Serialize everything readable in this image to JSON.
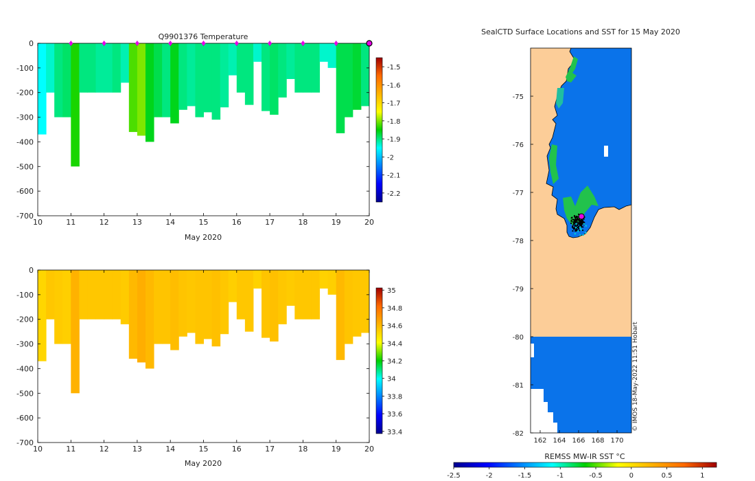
{
  "chart_data": [
    {
      "type": "heatmap",
      "title": "Q9901376  Temperature",
      "xlabel": "May 2020",
      "ylabel": "",
      "x_ticks": [
        "10",
        "11",
        "12",
        "13",
        "14",
        "15",
        "16",
        "17",
        "18",
        "19",
        "20"
      ],
      "x_range_days": [
        10,
        20
      ],
      "y_ticks": [
        "0",
        "-100",
        "-200",
        "-300",
        "-400",
        "-500",
        "-600",
        "-700"
      ],
      "ylim": [
        -700,
        0
      ],
      "colorbar": {
        "min": -2.25,
        "max": -1.45,
        "ticks": [
          "-1.5",
          "-1.6",
          "-1.7",
          "-1.8",
          "-1.9",
          "-2",
          "-2.1",
          "-2.2"
        ]
      },
      "marker_days": [
        11,
        12,
        13,
        14,
        15,
        16,
        17,
        18,
        19,
        20
      ],
      "profiles": [
        {
          "day": 10.0,
          "depth": 370,
          "value": -1.95
        },
        {
          "day": 10.25,
          "depth": 200,
          "value": -1.93
        },
        {
          "day": 10.5,
          "depth": 300,
          "value": -1.9
        },
        {
          "day": 10.75,
          "depth": 300,
          "value": -1.89
        },
        {
          "day": 11.0,
          "depth": 500,
          "value": -1.84
        },
        {
          "day": 11.25,
          "depth": 200,
          "value": -1.9
        },
        {
          "day": 11.5,
          "depth": 200,
          "value": -1.9
        },
        {
          "day": 11.75,
          "depth": 200,
          "value": -1.91
        },
        {
          "day": 12.0,
          "depth": 200,
          "value": -1.91
        },
        {
          "day": 12.25,
          "depth": 200,
          "value": -1.9
        },
        {
          "day": 12.5,
          "depth": 160,
          "value": -1.92
        },
        {
          "day": 12.75,
          "depth": 360,
          "value": -1.82
        },
        {
          "day": 13.0,
          "depth": 375,
          "value": -1.8
        },
        {
          "day": 13.25,
          "depth": 400,
          "value": -1.86
        },
        {
          "day": 13.5,
          "depth": 300,
          "value": -1.88
        },
        {
          "day": 13.75,
          "depth": 300,
          "value": -1.9
        },
        {
          "day": 14.0,
          "depth": 325,
          "value": -1.86
        },
        {
          "day": 14.25,
          "depth": 270,
          "value": -1.9
        },
        {
          "day": 14.5,
          "depth": 255,
          "value": -1.91
        },
        {
          "day": 14.75,
          "depth": 300,
          "value": -1.9
        },
        {
          "day": 15.0,
          "depth": 280,
          "value": -1.9
        },
        {
          "day": 15.25,
          "depth": 310,
          "value": -1.9
        },
        {
          "day": 15.5,
          "depth": 260,
          "value": -1.91
        },
        {
          "day": 15.75,
          "depth": 130,
          "value": -1.92
        },
        {
          "day": 16.0,
          "depth": 200,
          "value": -1.9
        },
        {
          "day": 16.25,
          "depth": 250,
          "value": -1.9
        },
        {
          "day": 16.5,
          "depth": 75,
          "value": -1.93
        },
        {
          "day": 16.75,
          "depth": 275,
          "value": -1.9
        },
        {
          "day": 17.0,
          "depth": 290,
          "value": -1.89
        },
        {
          "day": 17.25,
          "depth": 220,
          "value": -1.9
        },
        {
          "day": 17.5,
          "depth": 145,
          "value": -1.91
        },
        {
          "day": 17.75,
          "depth": 200,
          "value": -1.9
        },
        {
          "day": 18.0,
          "depth": 200,
          "value": -1.9
        },
        {
          "day": 18.25,
          "depth": 200,
          "value": -1.9
        },
        {
          "day": 18.5,
          "depth": 75,
          "value": -1.93
        },
        {
          "day": 18.75,
          "depth": 100,
          "value": -1.93
        },
        {
          "day": 19.0,
          "depth": 365,
          "value": -1.88
        },
        {
          "day": 19.25,
          "depth": 300,
          "value": -1.88
        },
        {
          "day": 19.5,
          "depth": 270,
          "value": -1.87
        },
        {
          "day": 19.75,
          "depth": 255,
          "value": -1.9
        },
        {
          "day": 20.0,
          "depth": 310,
          "value": -1.9
        }
      ]
    },
    {
      "type": "heatmap",
      "title": "",
      "xlabel": "May 2020",
      "ylabel": "",
      "x_ticks": [
        "10",
        "11",
        "12",
        "13",
        "14",
        "15",
        "16",
        "17",
        "18",
        "19",
        "20"
      ],
      "x_range_days": [
        10,
        20
      ],
      "y_ticks": [
        "0",
        "-100",
        "-200",
        "-300",
        "-400",
        "-500",
        "-600",
        "-700"
      ],
      "ylim": [
        -700,
        0
      ],
      "colorbar": {
        "min": 33.375,
        "max": 35.025,
        "ticks": [
          "35",
          "34.8",
          "34.6",
          "34.4",
          "34.2",
          "34",
          "33.8",
          "33.6",
          "33.4"
        ]
      },
      "profiles": [
        {
          "day": 10.0,
          "depth": 370,
          "value": 34.52
        },
        {
          "day": 10.25,
          "depth": 200,
          "value": 34.56
        },
        {
          "day": 10.5,
          "depth": 300,
          "value": 34.55
        },
        {
          "day": 10.75,
          "depth": 300,
          "value": 34.54
        },
        {
          "day": 11.0,
          "depth": 500,
          "value": 34.62
        },
        {
          "day": 11.25,
          "depth": 200,
          "value": 34.56
        },
        {
          "day": 11.5,
          "depth": 200,
          "value": 34.56
        },
        {
          "day": 11.75,
          "depth": 200,
          "value": 34.56
        },
        {
          "day": 12.0,
          "depth": 200,
          "value": 34.56
        },
        {
          "day": 12.25,
          "depth": 200,
          "value": 34.56
        },
        {
          "day": 12.5,
          "depth": 220,
          "value": 34.55
        },
        {
          "day": 12.75,
          "depth": 360,
          "value": 34.6
        },
        {
          "day": 13.0,
          "depth": 375,
          "value": 34.63
        },
        {
          "day": 13.25,
          "depth": 400,
          "value": 34.6
        },
        {
          "day": 13.5,
          "depth": 300,
          "value": 34.57
        },
        {
          "day": 13.75,
          "depth": 300,
          "value": 34.57
        },
        {
          "day": 14.0,
          "depth": 325,
          "value": 34.59
        },
        {
          "day": 14.25,
          "depth": 270,
          "value": 34.57
        },
        {
          "day": 14.5,
          "depth": 255,
          "value": 34.56
        },
        {
          "day": 14.75,
          "depth": 300,
          "value": 34.57
        },
        {
          "day": 15.0,
          "depth": 280,
          "value": 34.57
        },
        {
          "day": 15.25,
          "depth": 310,
          "value": 34.58
        },
        {
          "day": 15.5,
          "depth": 260,
          "value": 34.56
        },
        {
          "day": 15.75,
          "depth": 130,
          "value": 34.54
        },
        {
          "day": 16.0,
          "depth": 200,
          "value": 34.56
        },
        {
          "day": 16.25,
          "depth": 250,
          "value": 34.56
        },
        {
          "day": 16.5,
          "depth": 75,
          "value": 34.53
        },
        {
          "day": 16.75,
          "depth": 275,
          "value": 34.57
        },
        {
          "day": 17.0,
          "depth": 290,
          "value": 34.58
        },
        {
          "day": 17.25,
          "depth": 220,
          "value": 34.56
        },
        {
          "day": 17.5,
          "depth": 145,
          "value": 34.55
        },
        {
          "day": 17.75,
          "depth": 200,
          "value": 34.56
        },
        {
          "day": 18.0,
          "depth": 200,
          "value": 34.56
        },
        {
          "day": 18.25,
          "depth": 200,
          "value": 34.56
        },
        {
          "day": 18.5,
          "depth": 75,
          "value": 34.53
        },
        {
          "day": 18.75,
          "depth": 100,
          "value": 34.54
        },
        {
          "day": 19.0,
          "depth": 365,
          "value": 34.6
        },
        {
          "day": 19.25,
          "depth": 300,
          "value": 34.57
        },
        {
          "day": 19.5,
          "depth": 270,
          "value": 34.56
        },
        {
          "day": 19.75,
          "depth": 255,
          "value": 34.56
        },
        {
          "day": 20.0,
          "depth": 310,
          "value": 34.56
        }
      ]
    },
    {
      "type": "heatmap",
      "title": "SealCTD Surface Locations and SST for 15 May 2020",
      "xlabel": "",
      "ylabel": "",
      "x_ticks": [
        "162",
        "164",
        "166",
        "168",
        "170"
      ],
      "xlim": [
        161,
        171.5
      ],
      "y_ticks": [
        "-75",
        "-76",
        "-77",
        "-78",
        "-79",
        "-80",
        "-81",
        "-82"
      ],
      "ylim": [
        -82,
        -74
      ],
      "colorbar_label": "REMSS MW-IR SST °C",
      "colorbar": {
        "min": -2.5,
        "max": 1.2,
        "ticks": [
          "-2.5",
          "-2",
          "-1.5",
          "-1",
          "-0.5",
          "0",
          "0.5",
          "1"
        ]
      },
      "latest_location": {
        "lon": 166.3,
        "lat": -77.5
      },
      "track_points_lon_range": [
        164.9,
        167.0
      ],
      "track_points_lat_range": [
        -77.95,
        -77.3
      ],
      "ocean_sst": -1.7,
      "land_color": "#fccd98",
      "sst_ocean_color": "#0a73ea"
    }
  ],
  "credit": "© IMOS 18-May-2022 11:51 Hobart",
  "colors": {
    "marker": "#e600e6",
    "axis": "#000000"
  }
}
